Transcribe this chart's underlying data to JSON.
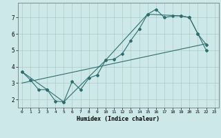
{
  "xlabel": "Humidex (Indice chaleur)",
  "bg_color": "#cce8e8",
  "line_color": "#2e6e6e",
  "grid_color": "#b0c8c8",
  "xlim": [
    -0.5,
    23.5
  ],
  "ylim": [
    1.5,
    7.9
  ],
  "xticks": [
    0,
    1,
    2,
    3,
    4,
    5,
    6,
    7,
    8,
    9,
    10,
    11,
    12,
    13,
    14,
    15,
    16,
    17,
    18,
    19,
    20,
    21,
    22,
    23
  ],
  "yticks": [
    2,
    3,
    4,
    5,
    6,
    7
  ],
  "line1_x": [
    0,
    1,
    2,
    3,
    4,
    5,
    6,
    7,
    8,
    9,
    10,
    11,
    12,
    13,
    14,
    15,
    16,
    17,
    18,
    19,
    20,
    21,
    22
  ],
  "line1_y": [
    3.7,
    3.2,
    2.6,
    2.6,
    1.9,
    1.85,
    3.1,
    2.6,
    3.3,
    3.5,
    4.4,
    4.45,
    4.8,
    5.6,
    6.3,
    7.2,
    7.5,
    7.0,
    7.1,
    7.1,
    7.0,
    6.0,
    5.0
  ],
  "line2_x": [
    0,
    3,
    5,
    10,
    15,
    19,
    20,
    21,
    22
  ],
  "line2_y": [
    3.7,
    2.6,
    1.85,
    4.4,
    7.2,
    7.1,
    7.0,
    6.0,
    5.35
  ],
  "line3_x": [
    0,
    22
  ],
  "line3_y": [
    3.0,
    5.4
  ]
}
